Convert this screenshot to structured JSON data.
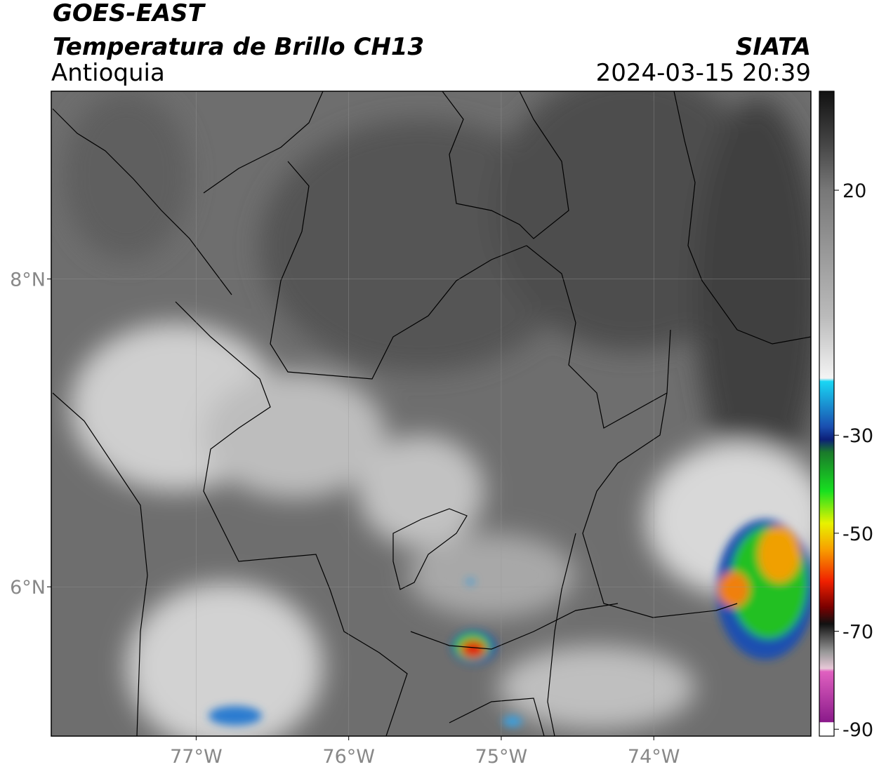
{
  "header": {
    "title": "GOES-EAST",
    "subtitle": "Temperatura de Brillo CH13",
    "region": "Antioquia",
    "source": "SIATA",
    "datetime": "2024-03-15 20:39"
  },
  "map": {
    "xlim": [
      -77.95,
      -72.97
    ],
    "ylim": [
      5.03,
      9.22
    ],
    "xticks": [
      {
        "value": -77,
        "label": "77°W"
      },
      {
        "value": -76,
        "label": "76°W"
      },
      {
        "value": -75,
        "label": "75°W"
      },
      {
        "value": -74,
        "label": "74°W"
      }
    ],
    "yticks": [
      {
        "value": 6,
        "label": "6°N"
      },
      {
        "value": 8,
        "label": "8°N"
      }
    ],
    "grid": true
  },
  "colorbar": {
    "lim": [
      -91.4,
      40.2
    ],
    "ticks": [
      20,
      -30,
      -50,
      -70,
      -90
    ]
  }
}
